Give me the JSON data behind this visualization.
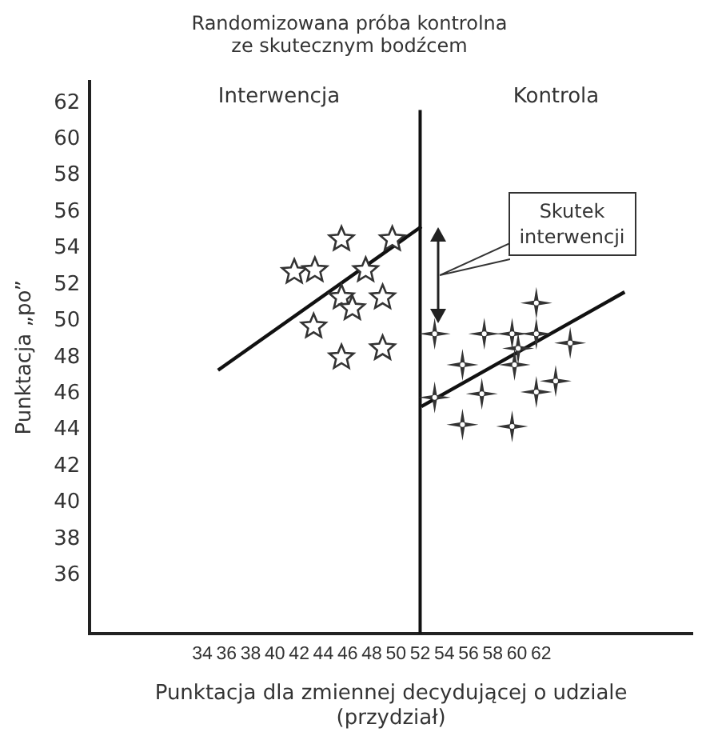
{
  "chart_data": {
    "type": "scatter",
    "title": "Randomizowana próba kontrolna\nze skutecznym bodźcem",
    "xlabel": "Punktacja dla zmiennej decydującej o udziale\n(przydział)",
    "ylabel": "Punktacja „po”",
    "xlim": [
      24.7,
      74.5
    ],
    "ylim": [
      32.8,
      63.2
    ],
    "xticks": [
      34,
      36,
      38,
      40,
      42,
      44,
      46,
      48,
      50,
      52,
      54,
      56,
      58,
      60,
      62
    ],
    "yticks": [
      36,
      38,
      40,
      42,
      44,
      46,
      48,
      50,
      52,
      54,
      56,
      58,
      60,
      62
    ],
    "grid": false,
    "legend": false,
    "series": [
      {
        "color": "#333333",
        "marker": "star",
        "x": [
          41.6,
          43.3,
          45.5,
          47.5,
          49.7,
          45.5,
          46.4,
          43.2,
          45.5,
          48.9,
          48.9
        ],
        "values": [
          52.7,
          52.8,
          54.5,
          52.8,
          54.5,
          51.3,
          50.7,
          49.7,
          48.0,
          48.5,
          51.3
        ]
      },
      {
        "color": "#333333",
        "marker": "cross",
        "x": [
          61.6,
          53.2,
          57.3,
          59.6,
          61.6,
          64.4,
          60.1,
          55.5,
          59.8,
          53.2,
          57.1,
          61.6,
          63.2,
          55.5,
          59.6
        ],
        "values": [
          51.0,
          49.3,
          49.3,
          49.3,
          49.3,
          48.8,
          48.5,
          47.6,
          47.6,
          45.8,
          46.0,
          46.1,
          46.7,
          44.3,
          44.2
        ]
      },
      {
        "type": "line",
        "color": "#111111",
        "marker": "none",
        "x": [
          35.3,
          52.1
        ],
        "values": [
          47.3,
          55.2
        ]
      },
      {
        "type": "line",
        "color": "#111111",
        "marker": "none",
        "x": [
          52.1,
          68.9
        ],
        "values": [
          45.3,
          51.6
        ]
      }
    ],
    "ref_lines": [
      {
        "axis": "x",
        "value": 52,
        "color": "#111111"
      }
    ],
    "annotations": [
      "Interwencja",
      "Kontrola",
      "Skutek\ninterwencji"
    ]
  }
}
